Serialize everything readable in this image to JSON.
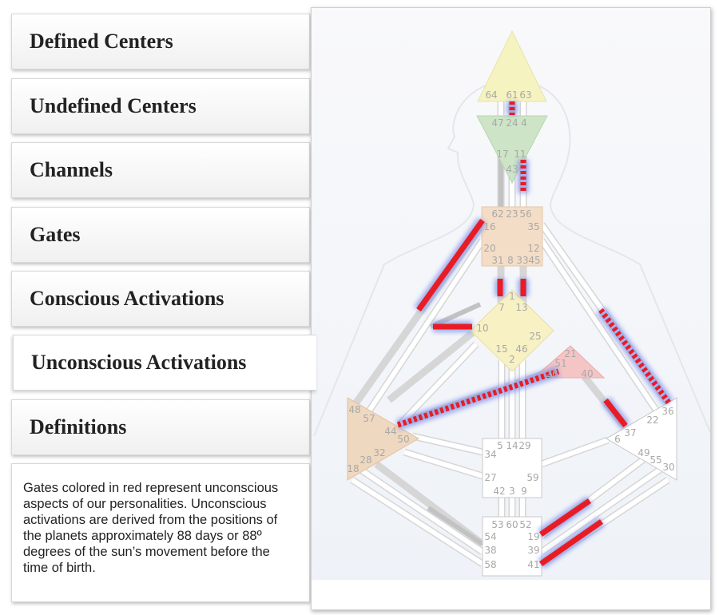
{
  "tabs": [
    {
      "label": "Defined Centers"
    },
    {
      "label": "Undefined Centers"
    },
    {
      "label": "Channels"
    },
    {
      "label": "Gates"
    },
    {
      "label": "Conscious Activations"
    },
    {
      "label": "Unconscious Activations"
    },
    {
      "label": "Definitions"
    }
  ],
  "active_tab": "Unconscious Activations",
  "description": "Gates colored in red represent unconscious aspects of our personalities. Unconscious activations are derived from the positions of the planets approximately 88 days or 88º degrees of the sun’s movement before the time of birth.",
  "colors": {
    "activation_red": "#e81c24",
    "glow_blue": "#7d8fe8",
    "head_yellow": "#f5f3c0",
    "ajna_green": "#cde4c6",
    "throat_tan": "#f4ddc6",
    "g_yellow": "#f7f1c4",
    "heart_red": "#f5c5c5",
    "spleen_tan": "#efd8c0"
  },
  "gates": {
    "head": [
      "64",
      "61",
      "63"
    ],
    "ajna": [
      "47",
      "24",
      "4",
      "17",
      "11",
      "43"
    ],
    "throat": [
      "62",
      "23",
      "56",
      "16",
      "35",
      "20",
      "12",
      "31",
      "8",
      "33",
      "45"
    ],
    "g": [
      "1",
      "7",
      "13",
      "10",
      "25",
      "15",
      "46",
      "2"
    ],
    "heart": [
      "21",
      "51",
      "26",
      "40"
    ],
    "spleen": [
      "48",
      "57",
      "44",
      "50",
      "32",
      "28",
      "18"
    ],
    "solar_plexus": [
      "22",
      "36",
      "6",
      "37",
      "49",
      "55",
      "30"
    ],
    "sacral": [
      "5",
      "14",
      "29",
      "34",
      "27",
      "59",
      "42",
      "3",
      "9"
    ],
    "root": [
      "53",
      "60",
      "52",
      "54",
      "19",
      "38",
      "39",
      "58",
      "41"
    ]
  }
}
